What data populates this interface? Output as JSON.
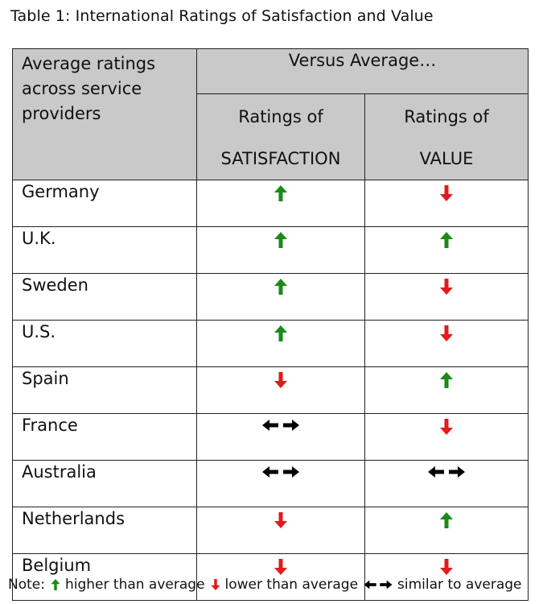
{
  "caption": "Table 1: International Ratings of Satisfaction and Value",
  "table": {
    "header_main": [
      "Average ratings",
      "across service",
      "providers"
    ],
    "header_group": "Versus Average…",
    "col_satisfaction": [
      "Ratings of",
      "SATISFACTION"
    ],
    "col_value": [
      "Ratings of",
      "VALUE"
    ],
    "rows": [
      {
        "country": "Germany",
        "satisfaction": "up",
        "value": "down"
      },
      {
        "country": "U.K.",
        "satisfaction": "up",
        "value": "up"
      },
      {
        "country": "Sweden",
        "satisfaction": "up",
        "value": "down"
      },
      {
        "country": "U.S.",
        "satisfaction": "up",
        "value": "down"
      },
      {
        "country": "Spain",
        "satisfaction": "down",
        "value": "up"
      },
      {
        "country": "France",
        "satisfaction": "similar",
        "value": "down"
      },
      {
        "country": "Australia",
        "satisfaction": "similar",
        "value": "similar"
      },
      {
        "country": "Netherlands",
        "satisfaction": "down",
        "value": "up"
      },
      {
        "country": "Belgium",
        "satisfaction": "down",
        "value": "down"
      }
    ]
  },
  "note": {
    "prefix": "Note:",
    "higher": "higher than average",
    "lower": "lower than average",
    "similar": "similar to average"
  },
  "colors": {
    "up": "#1a8a1a",
    "down": "#e31b1b",
    "similar": "#000000",
    "header_bg": "#c9c9c9"
  },
  "icons": {
    "up": "arrow-up-icon",
    "down": "arrow-down-icon",
    "similar": "arrow-left-right-icon"
  }
}
